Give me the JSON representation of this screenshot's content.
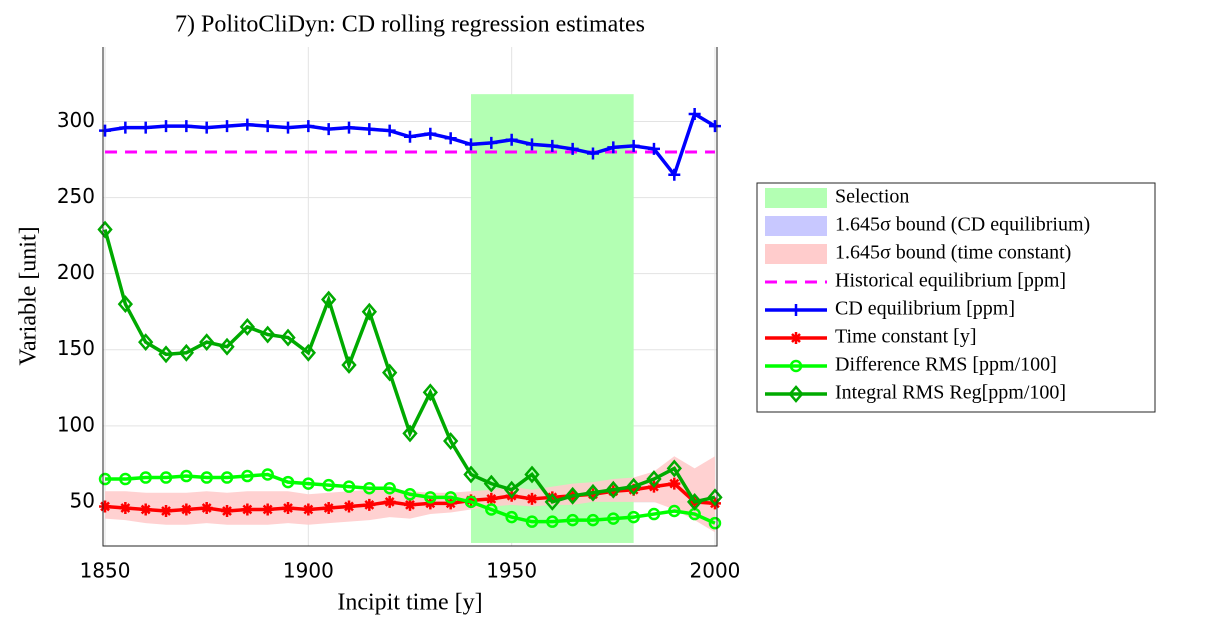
{
  "chart_data": {
    "type": "line",
    "title": "7) PolitoCliDyn: CD rolling regression estimates",
    "xlabel": "Incipit time [y]",
    "ylabel": "Variable [unit]",
    "xlim": [
      1849.5,
      2000.5
    ],
    "ylim": [
      21,
      349
    ],
    "xticks": [
      1850,
      1900,
      1950,
      2000
    ],
    "yticks": [
      50,
      100,
      150,
      200,
      250,
      300
    ],
    "grid": true,
    "legend": "outside right",
    "x": [
      1850,
      1855,
      1860,
      1865,
      1870,
      1875,
      1880,
      1885,
      1890,
      1895,
      1900,
      1905,
      1910,
      1915,
      1920,
      1925,
      1930,
      1935,
      1940,
      1945,
      1950,
      1955,
      1960,
      1965,
      1970,
      1975,
      1980,
      1985,
      1990,
      1995,
      2000
    ],
    "selection": {
      "name": "Selection",
      "color": "#b3ffb3",
      "xrange": [
        1940,
        1980
      ],
      "yrange": [
        23,
        318
      ]
    },
    "bands": [
      {
        "name": "1.645σ bound (CD equilibrium)",
        "color": "#c8c8ff"
      },
      {
        "name": "1.645σ bound (time constant)",
        "color": "#ffcccc",
        "upper": [
          57,
          57,
          56,
          56,
          56,
          57,
          56,
          57,
          57,
          57,
          55,
          56,
          57,
          58,
          59,
          57,
          56,
          56,
          57,
          58,
          60,
          58,
          60,
          62,
          63,
          65,
          66,
          70,
          80,
          72,
          80
        ],
        "lower": [
          39,
          38,
          36,
          35,
          35,
          36,
          35,
          35,
          35,
          36,
          35,
          36,
          37,
          38,
          40,
          39,
          42,
          43,
          45,
          47,
          48,
          47,
          48,
          48,
          50,
          50,
          50,
          50,
          45,
          38,
          30
        ]
      }
    ],
    "reference": {
      "name": "Historical equilibrium [ppm]",
      "color": "#ff00ff",
      "value": 280,
      "x": [
        1850,
        2000
      ]
    },
    "series": [
      {
        "name": "CD equilibrium [ppm]",
        "color": "#0000ff",
        "marker": "plus",
        "values": [
          294,
          296,
          296,
          297,
          297,
          296,
          297,
          298,
          297,
          296,
          297,
          295,
          296,
          295,
          294,
          290,
          292,
          289,
          285,
          286,
          288,
          285,
          284,
          282,
          279,
          283,
          284,
          282,
          265,
          305,
          297
        ]
      },
      {
        "name": "Time constant [y]",
        "color": "#ff0000",
        "marker": "star",
        "values": [
          47,
          46,
          45,
          44,
          45,
          46,
          44,
          45,
          45,
          46,
          45,
          46,
          47,
          48,
          50,
          48,
          49,
          49,
          51,
          52,
          54,
          52,
          53,
          54,
          55,
          57,
          58,
          60,
          62,
          50,
          49
        ]
      },
      {
        "name": "Difference RMS [ppm/100]",
        "color": "#00ff00",
        "marker": "circle",
        "values": [
          65,
          65,
          66,
          66,
          67,
          66,
          66,
          67,
          68,
          63,
          62,
          61,
          60,
          59,
          59,
          55,
          53,
          53,
          50,
          45,
          40,
          37,
          37,
          38,
          38,
          39,
          40,
          42,
          44,
          42,
          36
        ]
      },
      {
        "name": "Integral RMS Reg[ppm/100]",
        "color": "#00aa00",
        "marker": "diamond",
        "values": [
          229,
          180,
          155,
          147,
          148,
          155,
          152,
          165,
          160,
          158,
          148,
          183,
          140,
          175,
          135,
          95,
          122,
          90,
          68,
          62,
          58,
          68,
          50,
          54,
          56,
          58,
          60,
          65,
          72,
          50,
          53
        ]
      }
    ]
  }
}
